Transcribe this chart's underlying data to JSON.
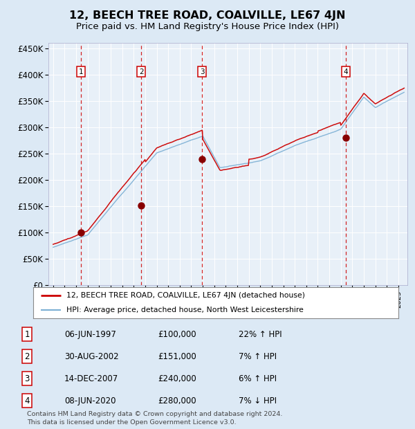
{
  "title": "12, BEECH TREE ROAD, COALVILLE, LE67 4JN",
  "subtitle": "Price paid vs. HM Land Registry's House Price Index (HPI)",
  "title_fontsize": 11.5,
  "subtitle_fontsize": 9.5,
  "bg_color": "#dce9f5",
  "plot_bg_color": "#e8f0f8",
  "ylim": [
    0,
    460000
  ],
  "yticks": [
    0,
    50000,
    100000,
    150000,
    200000,
    250000,
    300000,
    350000,
    400000,
    450000
  ],
  "ytick_labels": [
    "£0",
    "£50K",
    "£100K",
    "£150K",
    "£200K",
    "£250K",
    "£300K",
    "£350K",
    "£400K",
    "£450K"
  ],
  "xlim_start": 1994.6,
  "xlim_end": 2025.8,
  "sale_dates": [
    1997.43,
    2002.66,
    2007.95,
    2020.44
  ],
  "sale_prices": [
    100000,
    151000,
    240000,
    280000
  ],
  "sale_labels": [
    "1",
    "2",
    "3",
    "4"
  ],
  "red_line_color": "#cc0000",
  "blue_line_color": "#7bafd4",
  "sale_marker_color": "#880000",
  "legend_entries": [
    "12, BEECH TREE ROAD, COALVILLE, LE67 4JN (detached house)",
    "HPI: Average price, detached house, North West Leicestershire"
  ],
  "table_rows": [
    [
      "1",
      "06-JUN-1997",
      "£100,000",
      "22% ↑ HPI"
    ],
    [
      "2",
      "30-AUG-2002",
      "£151,000",
      "7% ↑ HPI"
    ],
    [
      "3",
      "14-DEC-2007",
      "£240,000",
      "6% ↑ HPI"
    ],
    [
      "4",
      "08-JUN-2020",
      "£280,000",
      "7% ↓ HPI"
    ]
  ],
  "footer": "Contains HM Land Registry data © Crown copyright and database right 2024.\nThis data is licensed under the Open Government Licence v3.0."
}
